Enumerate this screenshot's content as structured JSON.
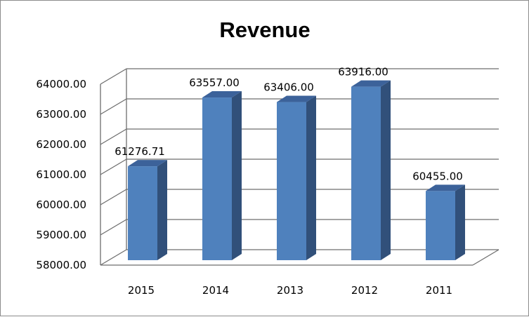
{
  "chart_data": {
    "type": "bar",
    "title": "Revenue",
    "categories": [
      "2015",
      "2014",
      "2013",
      "2012",
      "2011"
    ],
    "values": [
      61276.71,
      63557.0,
      63406.0,
      63916.0,
      60455.0
    ],
    "value_labels": [
      "61276.71",
      "63557.00",
      "63406.00",
      "63916.00",
      "60455.00"
    ],
    "ylim": [
      58000,
      64000
    ],
    "yticks": [
      "58000.00",
      "59000.00",
      "60000.00",
      "61000.00",
      "62000.00",
      "63000.00",
      "64000.00"
    ],
    "xlabel": "",
    "ylabel": "",
    "grid": true,
    "colors": {
      "bar_front": "#4f81bd",
      "bar_side": "#31507a",
      "bar_top": "#3c629a",
      "grid": "#6e6e6e"
    }
  }
}
